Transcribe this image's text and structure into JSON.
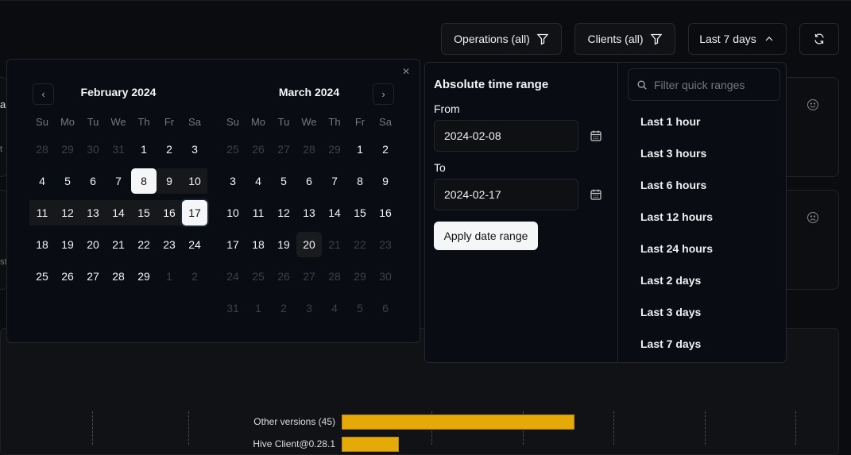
{
  "toolbar": {
    "operations": "Operations (all)",
    "clients": "Clients (all)",
    "range": "Last 7 days"
  },
  "background": {
    "edge_texts": [
      "ai",
      "t",
      "st"
    ]
  },
  "calendar": {
    "weekdays": [
      "Su",
      "Mo",
      "Tu",
      "We",
      "Th",
      "Fr",
      "Sa"
    ],
    "months": [
      {
        "title": "February 2024",
        "days": [
          [
            "28",
            "out"
          ],
          [
            "29",
            "out"
          ],
          [
            "30",
            "out"
          ],
          [
            "31",
            "out"
          ],
          [
            "1",
            ""
          ],
          [
            "2",
            ""
          ],
          [
            "3",
            ""
          ],
          [
            "4",
            ""
          ],
          [
            "5",
            ""
          ],
          [
            "6",
            ""
          ],
          [
            "7",
            ""
          ],
          [
            "8",
            "sel"
          ],
          [
            "9",
            "range"
          ],
          [
            "10",
            "range"
          ],
          [
            "11",
            "range"
          ],
          [
            "12",
            "range"
          ],
          [
            "13",
            "range"
          ],
          [
            "14",
            "range"
          ],
          [
            "15",
            "range"
          ],
          [
            "16",
            "range"
          ],
          [
            "17",
            "sel end"
          ],
          [
            "18",
            ""
          ],
          [
            "19",
            ""
          ],
          [
            "20",
            ""
          ],
          [
            "21",
            ""
          ],
          [
            "22",
            ""
          ],
          [
            "23",
            ""
          ],
          [
            "24",
            ""
          ],
          [
            "25",
            ""
          ],
          [
            "26",
            ""
          ],
          [
            "27",
            ""
          ],
          [
            "28",
            ""
          ],
          [
            "29",
            ""
          ],
          [
            "1",
            "out"
          ],
          [
            "2",
            "out"
          ]
        ]
      },
      {
        "title": "March 2024",
        "days": [
          [
            "25",
            "out"
          ],
          [
            "26",
            "out"
          ],
          [
            "27",
            "out"
          ],
          [
            "28",
            "out"
          ],
          [
            "29",
            "out"
          ],
          [
            "1",
            ""
          ],
          [
            "2",
            ""
          ],
          [
            "3",
            ""
          ],
          [
            "4",
            ""
          ],
          [
            "5",
            ""
          ],
          [
            "6",
            ""
          ],
          [
            "7",
            ""
          ],
          [
            "8",
            ""
          ],
          [
            "9",
            ""
          ],
          [
            "10",
            ""
          ],
          [
            "11",
            ""
          ],
          [
            "12",
            ""
          ],
          [
            "13",
            ""
          ],
          [
            "14",
            ""
          ],
          [
            "15",
            ""
          ],
          [
            "16",
            ""
          ],
          [
            "17",
            ""
          ],
          [
            "18",
            ""
          ],
          [
            "19",
            ""
          ],
          [
            "20",
            "today"
          ],
          [
            "21",
            "out"
          ],
          [
            "22",
            "out"
          ],
          [
            "23",
            "out"
          ],
          [
            "24",
            "out"
          ],
          [
            "25",
            "out"
          ],
          [
            "26",
            "out"
          ],
          [
            "27",
            "out"
          ],
          [
            "28",
            "out"
          ],
          [
            "29",
            "out"
          ],
          [
            "30",
            "out"
          ],
          [
            "31",
            "out"
          ],
          [
            "1",
            "out"
          ],
          [
            "2",
            "out"
          ],
          [
            "3",
            "out"
          ],
          [
            "4",
            "out"
          ],
          [
            "5",
            "out"
          ],
          [
            "6",
            "out"
          ]
        ]
      }
    ]
  },
  "time_range": {
    "title": "Absolute time range",
    "from_label": "From",
    "from_value": "2024-02-08",
    "to_label": "To",
    "to_value": "2024-02-17",
    "apply": "Apply date range",
    "search_placeholder": "Filter quick ranges",
    "quick_ranges": [
      "Last 1 hour",
      "Last 3 hours",
      "Last 6 hours",
      "Last 12 hours",
      "Last 24 hours",
      "Last 2 days",
      "Last 3 days",
      "Last 7 days"
    ]
  },
  "chart_data": {
    "type": "bar",
    "categories": [
      "Other versions (45)",
      "Hive Client@0.28.1"
    ],
    "values": [
      45,
      11
    ]
  },
  "colors": {
    "bar": "#e5a908",
    "accent": "#f5f6f8"
  }
}
